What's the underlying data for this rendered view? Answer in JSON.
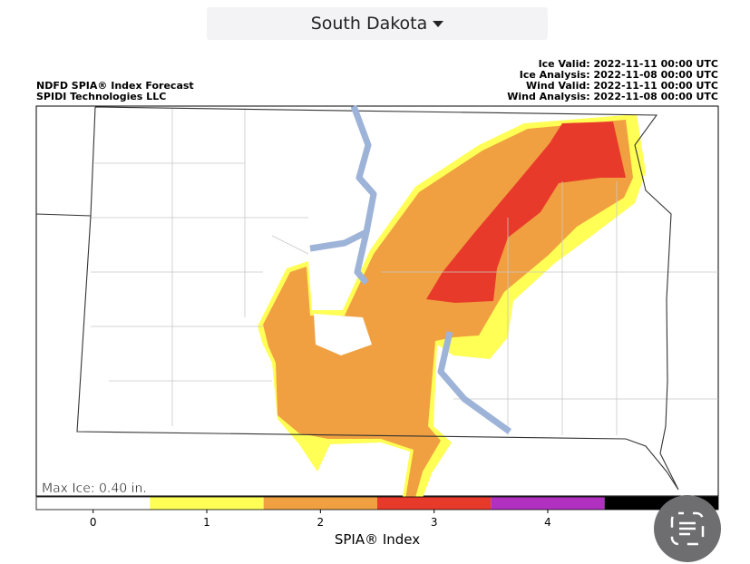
{
  "header": {
    "location": "South Dakota"
  },
  "map": {
    "title": "NDFD SPIA® Index Forecast",
    "credit": "SPIDI Technologies LLC",
    "info": [
      "Ice Valid: 2022-11-11 00:00 UTC",
      "Ice Analysis: 2022-11-08 00:00 UTC",
      "Wind Valid: 2022-11-11 00:00 UTC",
      "Wind Analysis: 2022-11-08 00:00 UTC"
    ],
    "annotation": "Max Ice: 0.40 in."
  },
  "colorbar": {
    "label": "SPIA® Index",
    "range": [
      -0.5,
      5.5
    ],
    "ticks": [
      0,
      1,
      2,
      3,
      4
    ],
    "colors": [
      "#ffffff",
      "#ffff55",
      "#f0a040",
      "#e83a2a",
      "#b030c0",
      "#000000"
    ]
  }
}
